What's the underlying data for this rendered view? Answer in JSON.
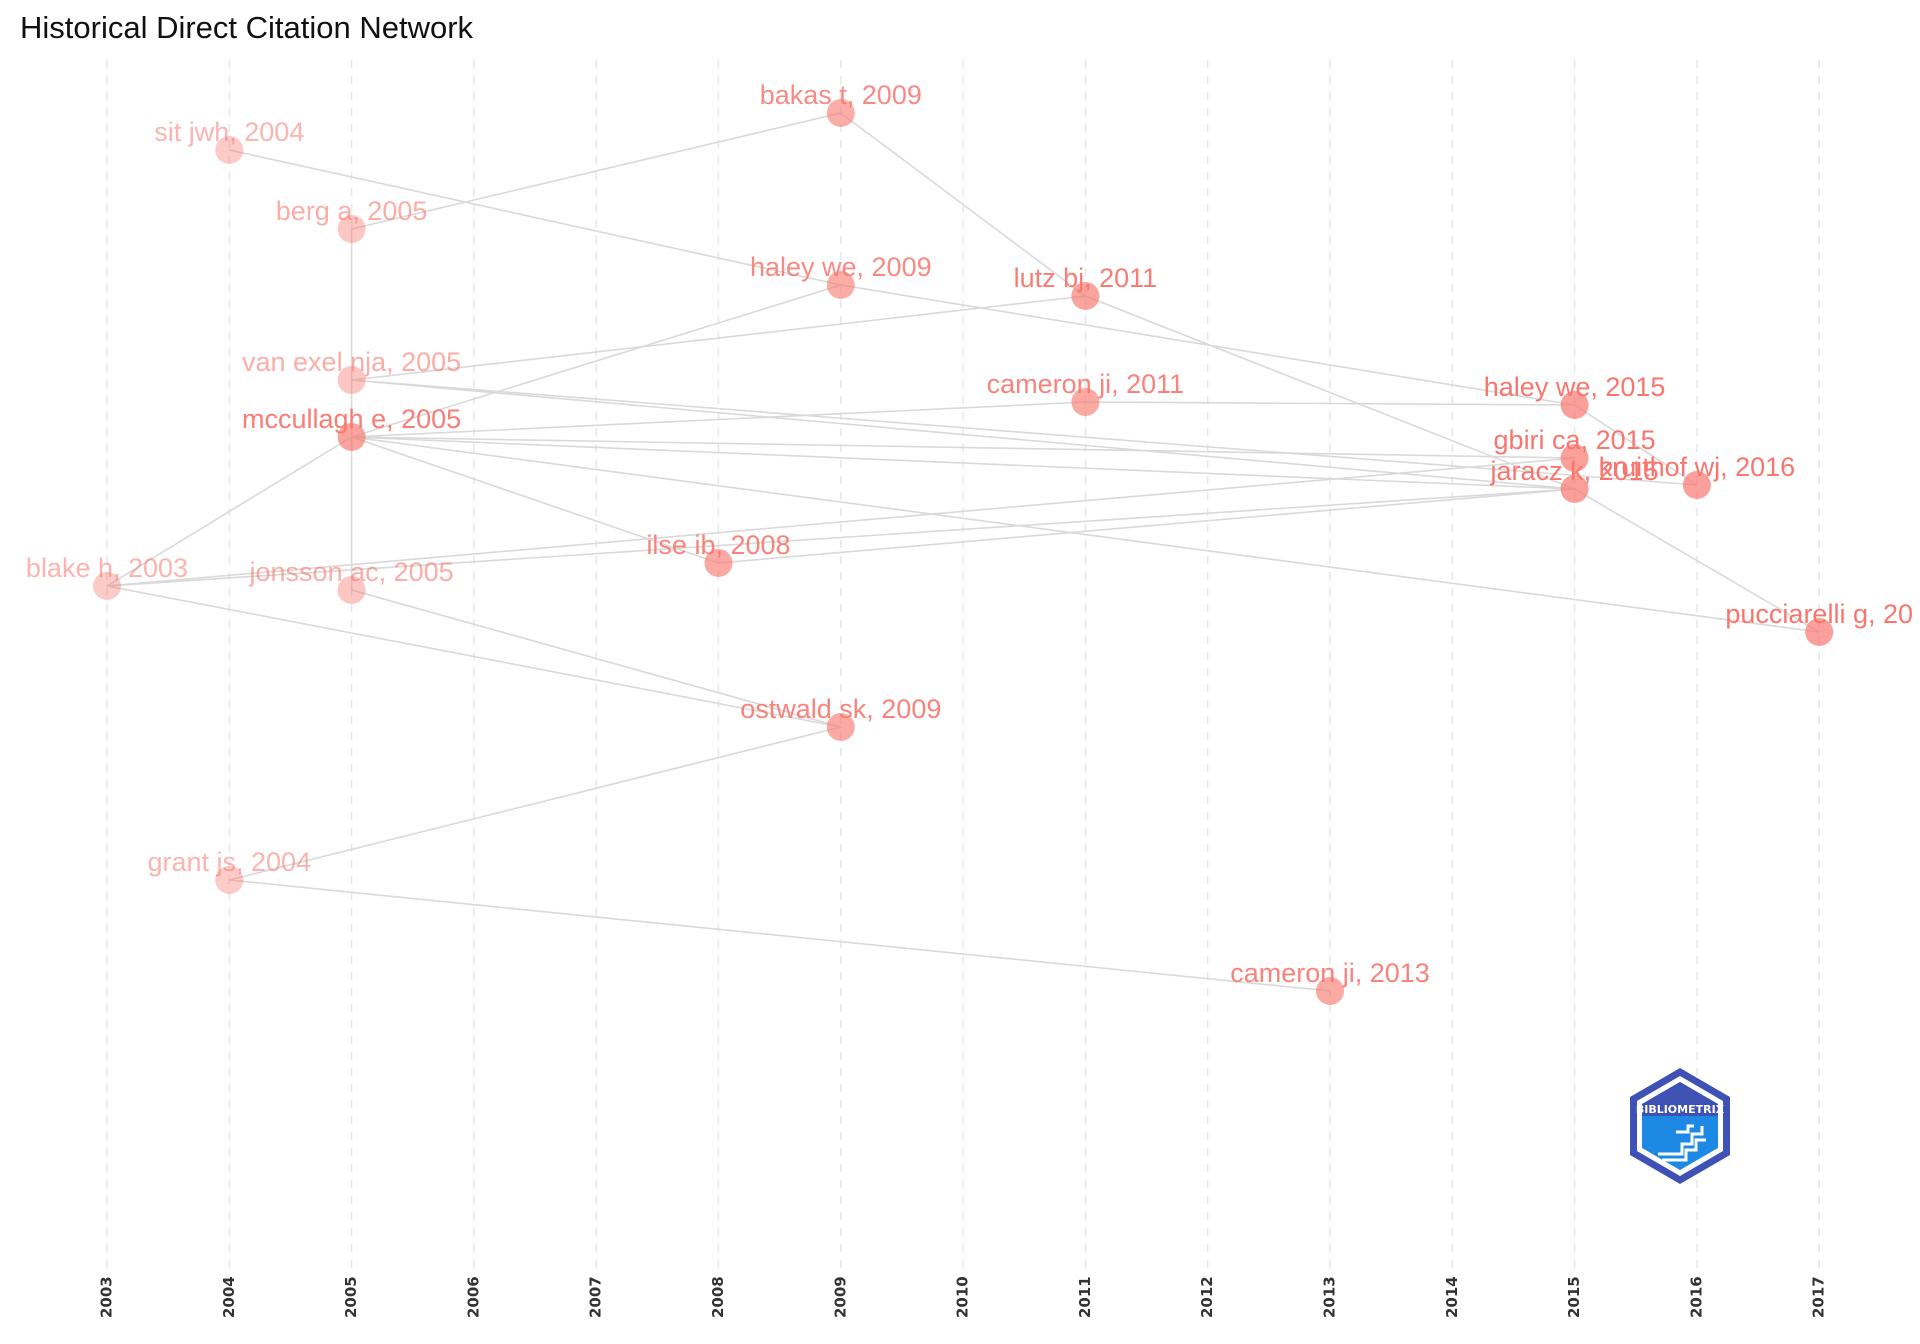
{
  "title": "Historical Direct Citation Network",
  "logo": {
    "text": "BIBLIOMETRIX",
    "colors": {
      "primary": "#1e88e5",
      "light": "#29b6f6",
      "dark": "#3f51b5"
    }
  },
  "colors": {
    "node": "#f8766d",
    "edge": "#d9d9d9",
    "grid": "#e6e6e6"
  },
  "years": [
    2003,
    2004,
    2005,
    2006,
    2007,
    2008,
    2009,
    2010,
    2011,
    2012,
    2013,
    2014,
    2015,
    2016,
    2017
  ],
  "nodes": [
    {
      "id": "sit2004",
      "label": "sit jwh, 2004",
      "year": 2004,
      "row": 150,
      "opacity": 0.55
    },
    {
      "id": "bakas2009",
      "label": "bakas t, 2009",
      "year": 2009,
      "row": 113,
      "opacity": 0.85
    },
    {
      "id": "berg2005",
      "label": "berg a, 2005",
      "year": 2005,
      "row": 229,
      "opacity": 0.6
    },
    {
      "id": "haley2009",
      "label": "haley we, 2009",
      "year": 2009,
      "row": 285,
      "opacity": 0.85
    },
    {
      "id": "lutz2011",
      "label": "lutz bj, 2011",
      "year": 2011,
      "row": 296,
      "opacity": 0.95
    },
    {
      "id": "vanexel2005",
      "label": "van exel nja, 2005",
      "year": 2005,
      "row": 380,
      "opacity": 0.6
    },
    {
      "id": "cameron2011",
      "label": "cameron ji, 2011",
      "year": 2011,
      "row": 402,
      "opacity": 0.9
    },
    {
      "id": "haley2015",
      "label": "haley we, 2015",
      "year": 2015,
      "row": 405,
      "opacity": 1.0
    },
    {
      "id": "mccullagh2005",
      "label": "mccullagh e, 2005",
      "year": 2005,
      "row": 437,
      "opacity": 0.95
    },
    {
      "id": "gbiri2015",
      "label": "gbiri ca, 2015",
      "year": 2015,
      "row": 458,
      "opacity": 1.0
    },
    {
      "id": "kruithof2016",
      "label": "kruithof wj, 2016",
      "year": 2016,
      "row": 485,
      "opacity": 1.0
    },
    {
      "id": "jaracz2015",
      "label": "jaracz k, 2015",
      "year": 2015,
      "row": 489,
      "opacity": 1.0
    },
    {
      "id": "ilse2008",
      "label": "ilse ib, 2008",
      "year": 2008,
      "row": 563,
      "opacity": 0.9
    },
    {
      "id": "blake2003",
      "label": "blake h, 2003",
      "year": 2003,
      "row": 586,
      "opacity": 0.55
    },
    {
      "id": "jonsson2005",
      "label": "jonsson ac, 2005",
      "year": 2005,
      "row": 590,
      "opacity": 0.6
    },
    {
      "id": "pucciarelli2017",
      "label": "pucciarelli g, 20",
      "year": 2017,
      "row": 632,
      "opacity": 1.0
    },
    {
      "id": "ostwald2009",
      "label": "ostwald sk, 2009",
      "year": 2009,
      "row": 727,
      "opacity": 0.9
    },
    {
      "id": "grant2004",
      "label": "grant js, 2004",
      "year": 2004,
      "row": 880,
      "opacity": 0.55
    },
    {
      "id": "cameron2013",
      "label": "cameron ji, 2013",
      "year": 2013,
      "row": 991,
      "opacity": 0.9
    }
  ],
  "edges": [
    [
      "berg2005",
      "bakas2009"
    ],
    [
      "bakas2009",
      "lutz2011"
    ],
    [
      "lutz2011",
      "jaracz2015"
    ],
    [
      "sit2004",
      "haley2009"
    ],
    [
      "haley2009",
      "haley2015"
    ],
    [
      "haley2015",
      "kruithof2016"
    ],
    [
      "berg2005",
      "jonsson2005"
    ],
    [
      "vanexel2005",
      "lutz2011"
    ],
    [
      "vanexel2005",
      "jaracz2015"
    ],
    [
      "vanexel2005",
      "kruithof2016"
    ],
    [
      "mccullagh2005",
      "haley2009"
    ],
    [
      "mccullagh2005",
      "cameron2011"
    ],
    [
      "cameron2011",
      "haley2015"
    ],
    [
      "mccullagh2005",
      "gbiri2015"
    ],
    [
      "mccullagh2005",
      "jaracz2015"
    ],
    [
      "mccullagh2005",
      "ilse2008"
    ],
    [
      "mccullagh2005",
      "pucciarelli2017"
    ],
    [
      "blake2003",
      "mccullagh2005"
    ],
    [
      "blake2003",
      "gbiri2015"
    ],
    [
      "blake2003",
      "jaracz2015"
    ],
    [
      "blake2003",
      "ostwald2009"
    ],
    [
      "ilse2008",
      "jaracz2015"
    ],
    [
      "jonsson2005",
      "ostwald2009"
    ],
    [
      "jaracz2015",
      "pucciarelli2017"
    ],
    [
      "grant2004",
      "ostwald2009"
    ],
    [
      "grant2004",
      "cameron2013"
    ]
  ]
}
